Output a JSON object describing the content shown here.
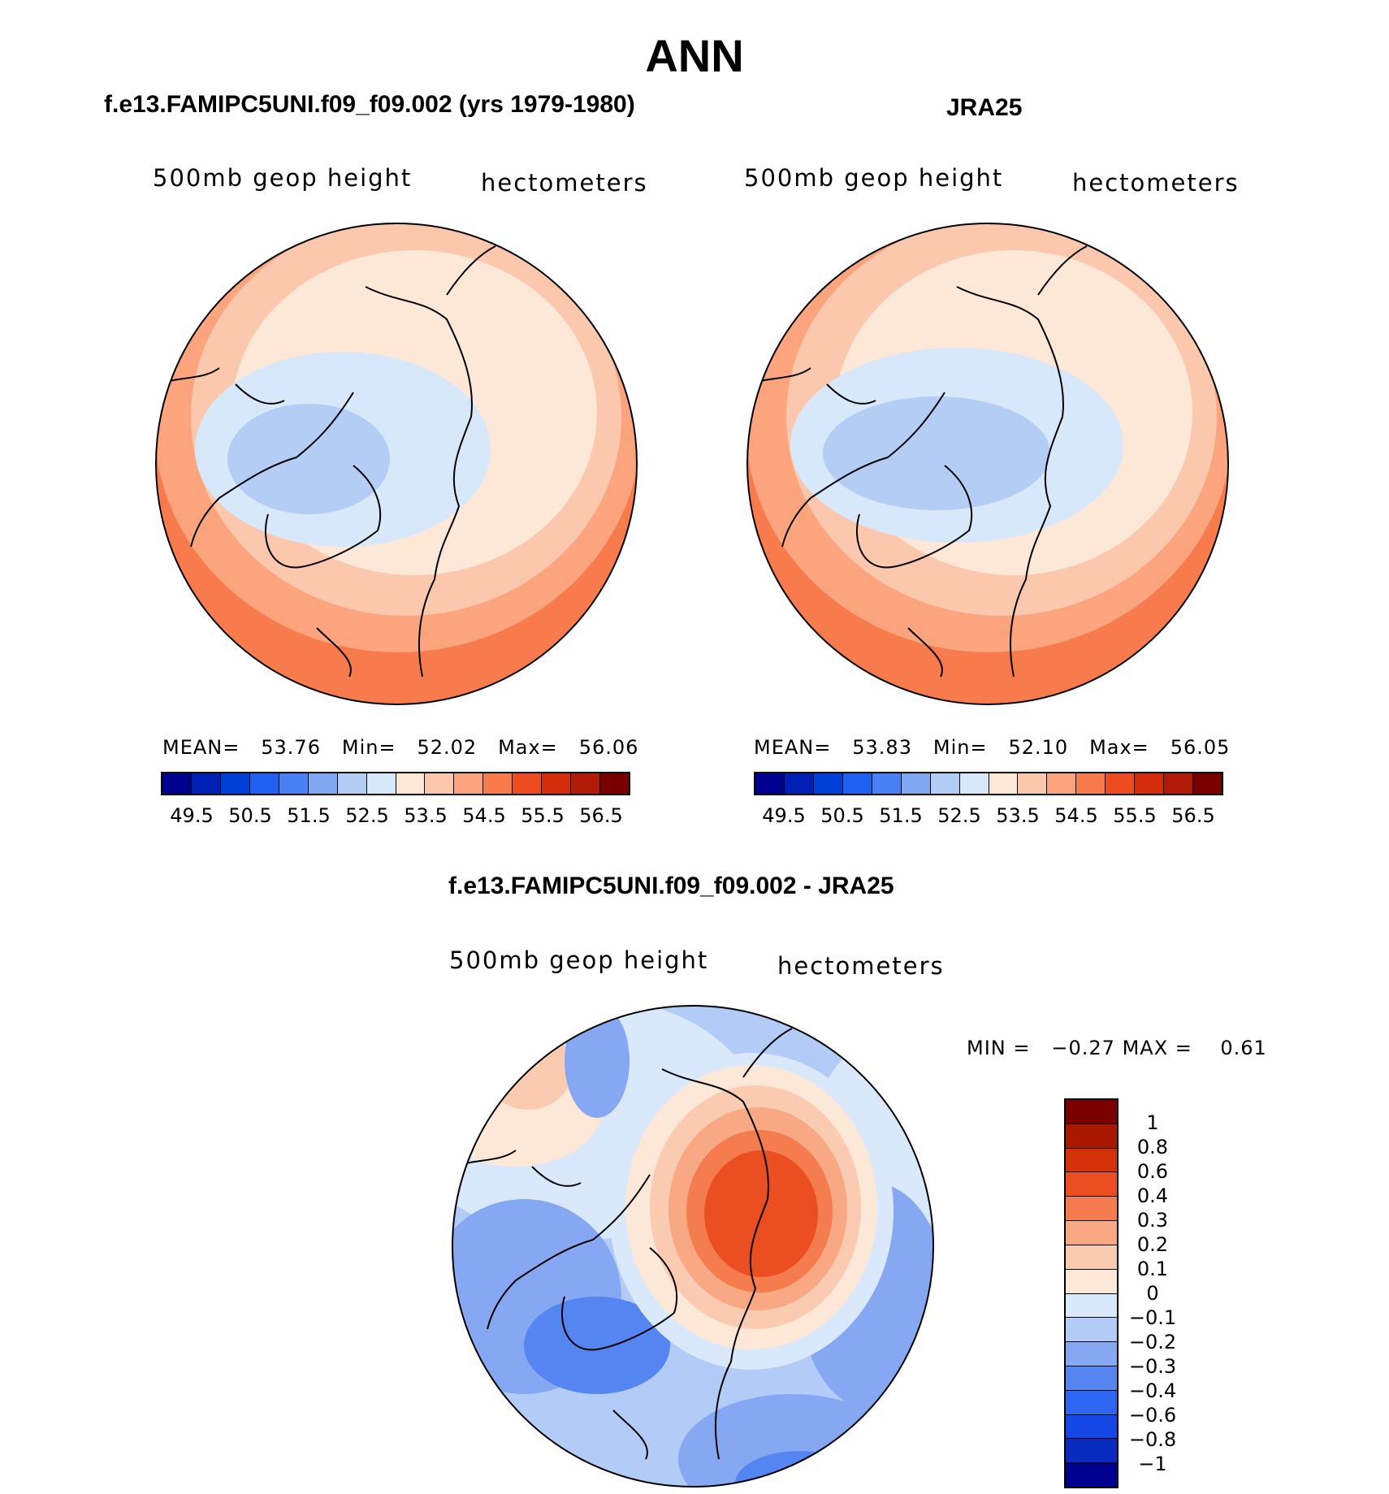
{
  "figure": {
    "title": "ANN"
  },
  "panels": {
    "model": {
      "title": "f.e13.FAMIPC5UNI.f09_f09.002 (yrs 1979-1980)",
      "variable": "500mb  geop  height",
      "units": "hectometers",
      "mean_label": "MEAN=",
      "mean": "53.76",
      "min_label": "Min=",
      "min": "52.02",
      "max_label": "Max=",
      "max": "56.06"
    },
    "obs": {
      "title": "JRA25",
      "variable": "500mb  geop  height",
      "units": "hectometers",
      "mean_label": "MEAN=",
      "mean": "53.83",
      "min_label": "Min=",
      "min": "52.10",
      "max_label": "Max=",
      "max": "56.05"
    },
    "diff": {
      "title": "f.e13.FAMIPC5UNI.f09_f09.002 - JRA25",
      "variable": "500mb  geop  height",
      "units": "hectometers",
      "min_label": "MIN =",
      "min": "−0.27",
      "max_label": "MAX =",
      "max": "0.61"
    }
  },
  "colors": {
    "abs_scale": [
      "#00008f",
      "#0020b5",
      "#0040d8",
      "#2060f0",
      "#4a80f5",
      "#80a8f2",
      "#b4cdf5",
      "#d7e8fb",
      "#fde7d7",
      "#fcc8ad",
      "#fba47e",
      "#f77b4c",
      "#ef4b20",
      "#d42d0c",
      "#b01a06",
      "#7a0000"
    ],
    "diff_scale": [
      "#00008f",
      "#0a2bbf",
      "#1447e6",
      "#2e65f2",
      "#5585f0",
      "#86a8f3",
      "#b2cbf7",
      "#d9e9fb",
      "#fde7d7",
      "#fbcbb1",
      "#f9a884",
      "#f47c4f",
      "#eb4e21",
      "#d2310a",
      "#a91800",
      "#7a0000"
    ],
    "map_outline": "#000000"
  },
  "colorbars": {
    "abs_ticks": [
      "49.5",
      "50.5",
      "51.5",
      "52.5",
      "53.5",
      "54.5",
      "55.5",
      "56.5"
    ],
    "diff_ticks": [
      "1",
      "0.8",
      "0.6",
      "0.4",
      "0.3",
      "0.2",
      "0.1",
      "0",
      "−0.1",
      "−0.2",
      "−0.3",
      "−0.4",
      "−0.6",
      "−0.8",
      "−1"
    ]
  }
}
